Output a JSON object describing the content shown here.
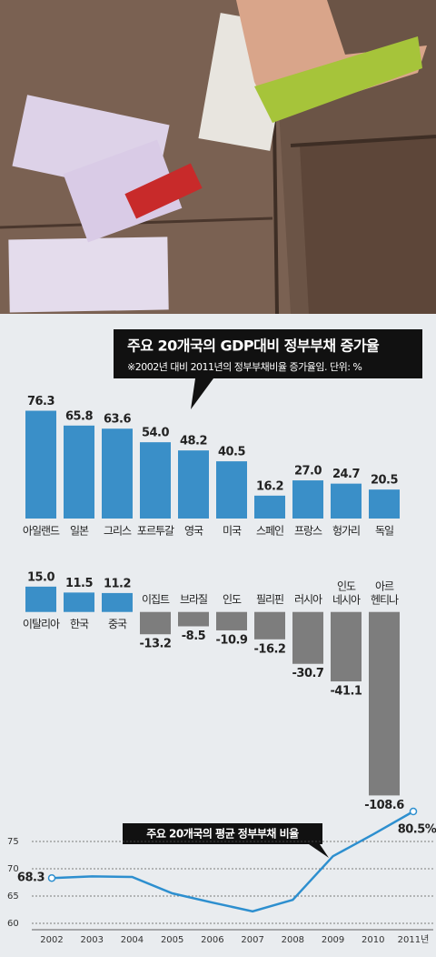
{
  "chart_data": [
    {
      "type": "bar",
      "title": "주요 20개국의 GDP대비 정부부채 증가율",
      "subtitle": "※2002년 대비 2011년의 정부부채비율 증가율임. 단위: %",
      "categories": [
        "아일랜드",
        "일본",
        "그리스",
        "포르투갈",
        "영국",
        "미국",
        "스페인",
        "프랑스",
        "헝가리",
        "독일"
      ],
      "values": [
        76.3,
        65.8,
        63.6,
        54.0,
        48.2,
        40.5,
        16.2,
        27.0,
        24.7,
        20.5
      ],
      "value_labels": [
        "76.3",
        "65.8",
        "63.6",
        "54.0",
        "48.2",
        "40.5",
        "16.2",
        "27.0",
        "24.7",
        "20.5"
      ],
      "color": "#3a8fc8",
      "ylim": [
        0,
        85
      ]
    },
    {
      "type": "bar",
      "categories": [
        "이탈리아",
        "한국",
        "중국",
        "이집트",
        "브라질",
        "인도",
        "필리핀",
        "러시아",
        "인도 네시아",
        "아르 헨티나"
      ],
      "values": [
        15.0,
        11.5,
        11.2,
        -13.2,
        -8.5,
        -10.9,
        -16.2,
        -30.7,
        -41.1,
        -108.6
      ],
      "value_labels": [
        "15.0",
        "11.5",
        "11.2",
        "-13.2",
        "-8.5",
        "-10.9",
        "-16.2",
        "-30.7",
        "-41.1",
        "-108.6"
      ],
      "color": "#3a8fc8",
      "negative_color": "#7d7d7d",
      "ylim": [
        -110,
        16
      ]
    },
    {
      "type": "line",
      "title": "주요 20개국의 평균 정부부채 비율",
      "categories": [
        "2002",
        "2003",
        "2004",
        "2005",
        "2006",
        "2007",
        "2008",
        "2009",
        "2010",
        "2011년"
      ],
      "values": [
        68.3,
        68.6,
        68.5,
        65.5,
        63.8,
        62.2,
        64.3,
        72.3,
        76.3,
        80.5
      ],
      "value_labels": [
        "68.3",
        null,
        null,
        null,
        null,
        null,
        null,
        null,
        null,
        "80.5%"
      ],
      "color": "#2d8fcf",
      "ylim": [
        58,
        82
      ],
      "yticks": [
        60,
        65,
        70,
        75
      ],
      "grid": true
    }
  ]
}
